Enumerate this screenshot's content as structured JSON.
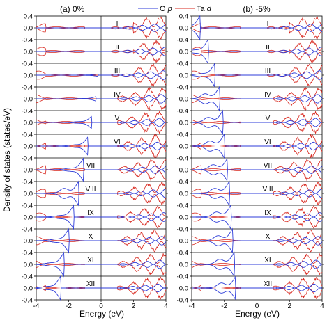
{
  "figure": {
    "ylabel": "Density of states (states/eV)",
    "legend": [
      {
        "label": "O",
        "suffix": "p",
        "color": "#2c3bd8"
      },
      {
        "label": "Ta",
        "suffix": "d",
        "color": "#d8281f"
      }
    ]
  },
  "chart_data": [
    {
      "type": "line",
      "title": "(a) 0%",
      "xlabel": "Energy (eV)",
      "xlim": [
        -4,
        4
      ],
      "xticks": [
        "-4",
        "-2",
        "0",
        "2",
        "4"
      ],
      "ylim_per_panel": [
        -0.4,
        0.4
      ],
      "yticks": [
        "-0.4",
        "0.0",
        "0.4"
      ],
      "rows": [
        "I",
        "II",
        "III",
        "IV",
        "V",
        "VI",
        "VII",
        "VIII",
        "IX",
        "X",
        "XI",
        "XII"
      ],
      "series": [
        "O p",
        "Ta d"
      ],
      "rows_detail": [
        {
          "label": "I",
          "o_edge_eV": null,
          "o_lead": 0,
          "o_peak": 0.0
        },
        {
          "label": "II",
          "o_edge_eV": null,
          "o_lead": 0,
          "o_peak": 0.0
        },
        {
          "label": "III",
          "o_edge_eV": -0.2,
          "o_lead": 0,
          "o_peak": 0.04
        },
        {
          "label": "IV",
          "o_edge_eV": -0.3,
          "o_lead": 0,
          "o_peak": 0.08
        },
        {
          "label": "V",
          "o_edge_eV": -0.6,
          "o_lead": 0,
          "o_peak": 0.2
        },
        {
          "label": "VI",
          "o_edge_eV": -0.8,
          "o_lead": 0,
          "o_peak": 0.32
        },
        {
          "label": "VII",
          "o_edge_eV": -1.1,
          "o_lead": 0,
          "o_peak": 0.38
        },
        {
          "label": "VIII",
          "o_edge_eV": -1.4,
          "o_lead": 1,
          "o_peak": 0.4
        },
        {
          "label": "IX",
          "o_edge_eV": -1.7,
          "o_lead": 0,
          "o_peak": 0.4
        },
        {
          "label": "X",
          "o_edge_eV": -2.0,
          "o_lead": 0,
          "o_peak": 0.4
        },
        {
          "label": "XI",
          "o_edge_eV": -2.3,
          "o_lead": 0,
          "o_peak": 0.4
        },
        {
          "label": "XII",
          "o_edge_eV": -2.5,
          "o_lead": 0,
          "o_peak": 0.4
        }
      ]
    },
    {
      "type": "line",
      "title": "(b) -5%",
      "xlabel": "Energy (eV)",
      "xlim": [
        -4,
        4
      ],
      "xticks": [
        "-4",
        "-2",
        "0",
        "2",
        "4"
      ],
      "ylim_per_panel": [
        -0.4,
        0.4
      ],
      "yticks": [
        "-0.4",
        "0.0",
        "0.4"
      ],
      "rows": [
        "I",
        "II",
        "III",
        "IV",
        "V",
        "VI",
        "VII",
        "VIII",
        "IX",
        "X",
        "XI",
        "XII"
      ],
      "series": [
        "O p",
        "Ta d"
      ],
      "rows_detail": [
        {
          "label": "I",
          "o_edge_eV": -3.5,
          "o_lead": 0,
          "o_peak": 0.4
        },
        {
          "label": "II",
          "o_edge_eV": -3.0,
          "o_lead": 0,
          "o_peak": 0.4
        },
        {
          "label": "III",
          "o_edge_eV": -2.6,
          "o_lead": 0,
          "o_peak": 0.38
        },
        {
          "label": "IV",
          "o_edge_eV": -2.3,
          "o_lead": 1,
          "o_peak": 0.4
        },
        {
          "label": "V",
          "o_edge_eV": -2.1,
          "o_lead": 1,
          "o_peak": 0.4
        },
        {
          "label": "VI",
          "o_edge_eV": -2.0,
          "o_lead": 1,
          "o_peak": 0.4
        },
        {
          "label": "VII",
          "o_edge_eV": -1.8,
          "o_lead": 1,
          "o_peak": 0.4
        },
        {
          "label": "VIII",
          "o_edge_eV": -1.7,
          "o_lead": 1,
          "o_peak": 0.4
        },
        {
          "label": "IX",
          "o_edge_eV": -1.6,
          "o_lead": 1,
          "o_peak": 0.4
        },
        {
          "label": "X",
          "o_edge_eV": -1.5,
          "o_lead": 1,
          "o_peak": 0.4
        },
        {
          "label": "XI",
          "o_edge_eV": -1.4,
          "o_lead": 1,
          "o_peak": 0.4
        },
        {
          "label": "XII",
          "o_edge_eV": -1.3,
          "o_lead": 1,
          "o_peak": 0.4
        }
      ]
    }
  ]
}
